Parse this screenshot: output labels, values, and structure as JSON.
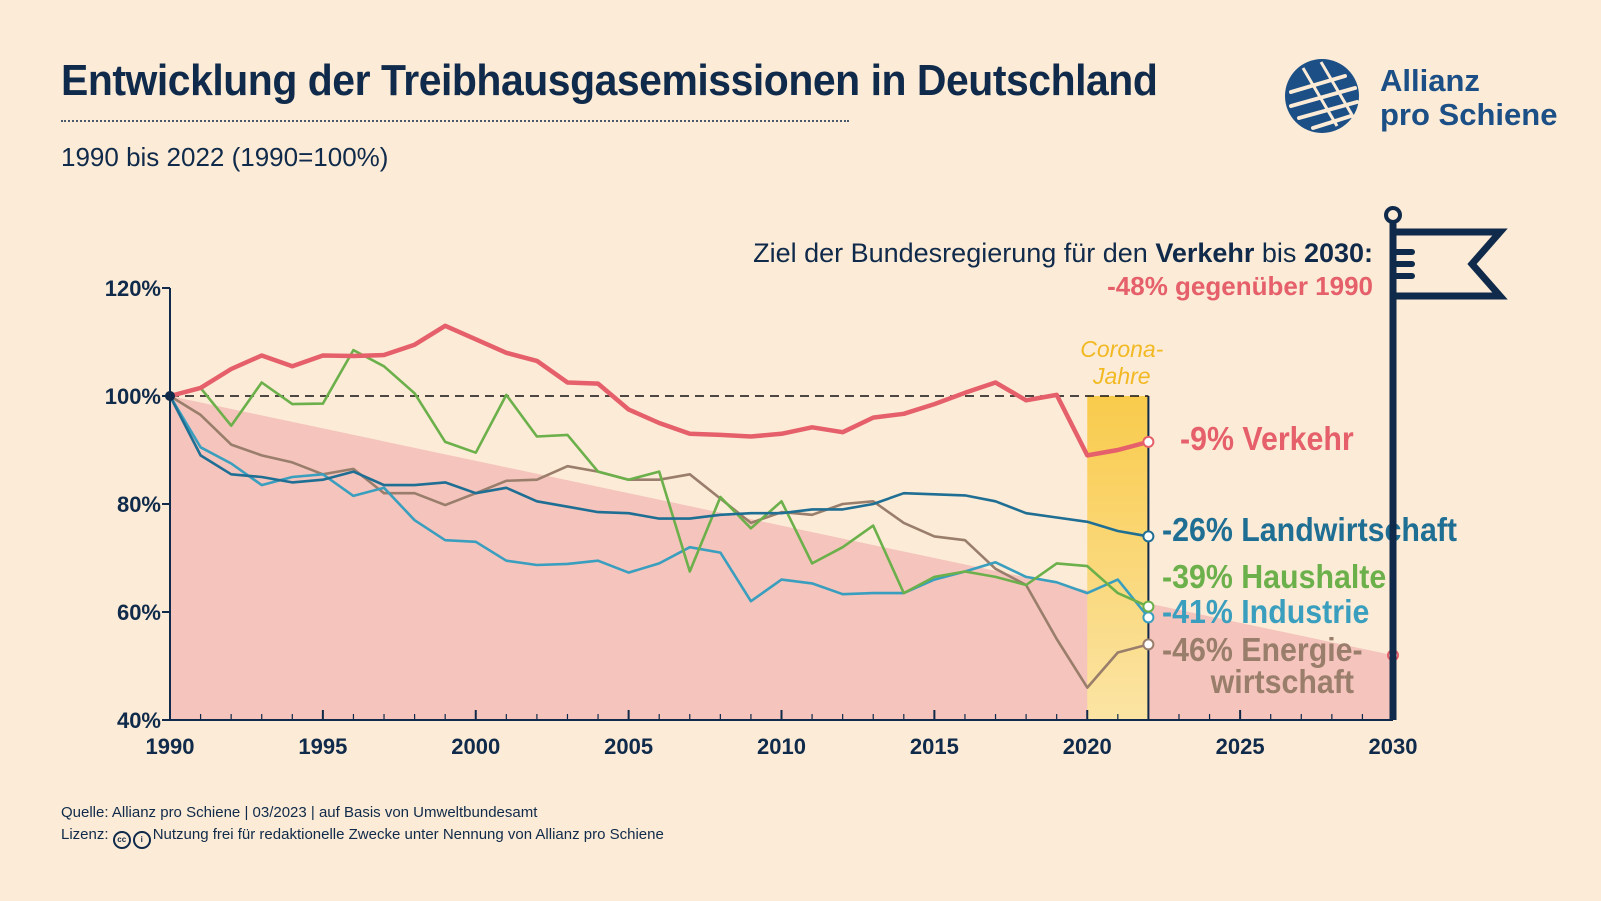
{
  "header": {
    "title": "Entwicklung der Treibhausgasemissionen in Deutschland",
    "subtitle": "1990 bis 2022 (1990=100%)"
  },
  "logo": {
    "line1": "Allianz",
    "line2": "pro Schiene",
    "icon": "allianz-pro-schiene-logo-icon"
  },
  "goal": {
    "line1_prefix": "Ziel der Bundesregierung für den ",
    "line1_bold1": "Verkehr",
    "line1_mid": " bis ",
    "line1_bold2": "2030:",
    "line2": "-48% gegenüber 1990",
    "icon": "flag-icon"
  },
  "corona": {
    "line1": "Corona-",
    "line2": "Jahre"
  },
  "footer": {
    "source": "Quelle: Allianz pro Schiene | 03/2023 | auf Basis von Umweltbundesamt",
    "license_label": "Lizenz:",
    "license_text": "Nutzung frei für redaktionelle Zwecke unter Nennung von Allianz pro Schiene"
  },
  "colors": {
    "background": "#fcebd6",
    "navy": "#0f2a4a",
    "verkehr": "#e5606a",
    "landwirtschaft": "#1f6e93",
    "haushalte": "#6bb04a",
    "industrie": "#3a9fbe",
    "energie": "#9a7e6c",
    "target_area": "#f5c4bc",
    "corona": "#f9cb4c"
  },
  "chart_data": {
    "type": "line",
    "xlabel": "",
    "ylabel": "",
    "xlim": [
      1990,
      2030
    ],
    "ylim": [
      40,
      120
    ],
    "x_ticks": [
      "1990",
      "1995",
      "2000",
      "2005",
      "2010",
      "2015",
      "2020",
      "2025",
      "2030"
    ],
    "y_ticks": [
      "120%",
      "100%",
      "80%",
      "60%",
      "40%"
    ],
    "reference_line": {
      "value": 100,
      "style": "dashed"
    },
    "target": {
      "from": [
        1990,
        100
      ],
      "to": [
        2030,
        52
      ]
    },
    "corona_period": [
      2020,
      2022
    ],
    "years": [
      1990,
      1991,
      1992,
      1993,
      1994,
      1995,
      1996,
      1997,
      1998,
      1999,
      2000,
      2001,
      2002,
      2003,
      2004,
      2005,
      2006,
      2007,
      2008,
      2009,
      2010,
      2011,
      2012,
      2013,
      2014,
      2015,
      2016,
      2017,
      2018,
      2019,
      2020,
      2021,
      2022
    ],
    "series": [
      {
        "name": "Verkehr",
        "end_label": "-9% Verkehr",
        "color": "#e5606a",
        "values": [
          100,
          101.5,
          105,
          107.5,
          105.5,
          107.5,
          107.4,
          107.6,
          109.5,
          113,
          110.5,
          108,
          106.5,
          102.5,
          102.3,
          97.5,
          95,
          93,
          92.8,
          92.5,
          93,
          94.2,
          93.3,
          96,
          96.7,
          98.5,
          100.6,
          102.5,
          99.2,
          100.2,
          89,
          90,
          91.5
        ]
      },
      {
        "name": "Landwirtschaft",
        "end_label": "-26% Landwirtschaft",
        "color": "#1f6e93",
        "values": [
          100,
          89,
          85.5,
          85,
          84,
          84.5,
          86,
          83.5,
          83.5,
          84,
          82,
          83,
          80.5,
          79.5,
          78.5,
          78.3,
          77.3,
          77.3,
          78,
          78.3,
          78.3,
          79,
          79,
          80,
          82,
          81.8,
          81.6,
          80.5,
          78.3,
          77.5,
          76.7,
          75,
          74
        ]
      },
      {
        "name": "Haushalte",
        "end_label": "-39% Haushalte",
        "color": "#6bb04a",
        "values": [
          100,
          101.5,
          94.5,
          102.5,
          98.5,
          98.6,
          108.5,
          105.5,
          100.5,
          91.5,
          89.5,
          100.2,
          92.5,
          92.8,
          86,
          84.5,
          86,
          67.5,
          81.3,
          75.5,
          80.5,
          69,
          72,
          76,
          63.5,
          66.5,
          67.5,
          66.5,
          65,
          69,
          68.5,
          63.5,
          61
        ]
      },
      {
        "name": "Industrie",
        "end_label": "-41% Industrie",
        "color": "#3a9fbe",
        "values": [
          100,
          90.5,
          87.5,
          83.5,
          85,
          85.5,
          81.5,
          83,
          77,
          73.3,
          73,
          69.5,
          68.7,
          68.9,
          69.5,
          67.3,
          69,
          72,
          71,
          62,
          66,
          65.3,
          63.3,
          63.5,
          63.5,
          66,
          67.5,
          69.2,
          66.5,
          65.5,
          63.5,
          66,
          59
        ]
      },
      {
        "name": "Energiewirtschaft",
        "end_label_line1": "-46% Energie-",
        "end_label_line2": "wirtschaft",
        "color": "#9a7e6c",
        "values": [
          100,
          96.5,
          91,
          89,
          87.7,
          85.5,
          86.5,
          82,
          82,
          79.8,
          82,
          84.3,
          84.5,
          87,
          86,
          84.5,
          84.5,
          85.5,
          81,
          76.5,
          78.5,
          78,
          80,
          80.5,
          76.5,
          74,
          73.3,
          68,
          65,
          55,
          46,
          52.5,
          54
        ]
      }
    ]
  }
}
